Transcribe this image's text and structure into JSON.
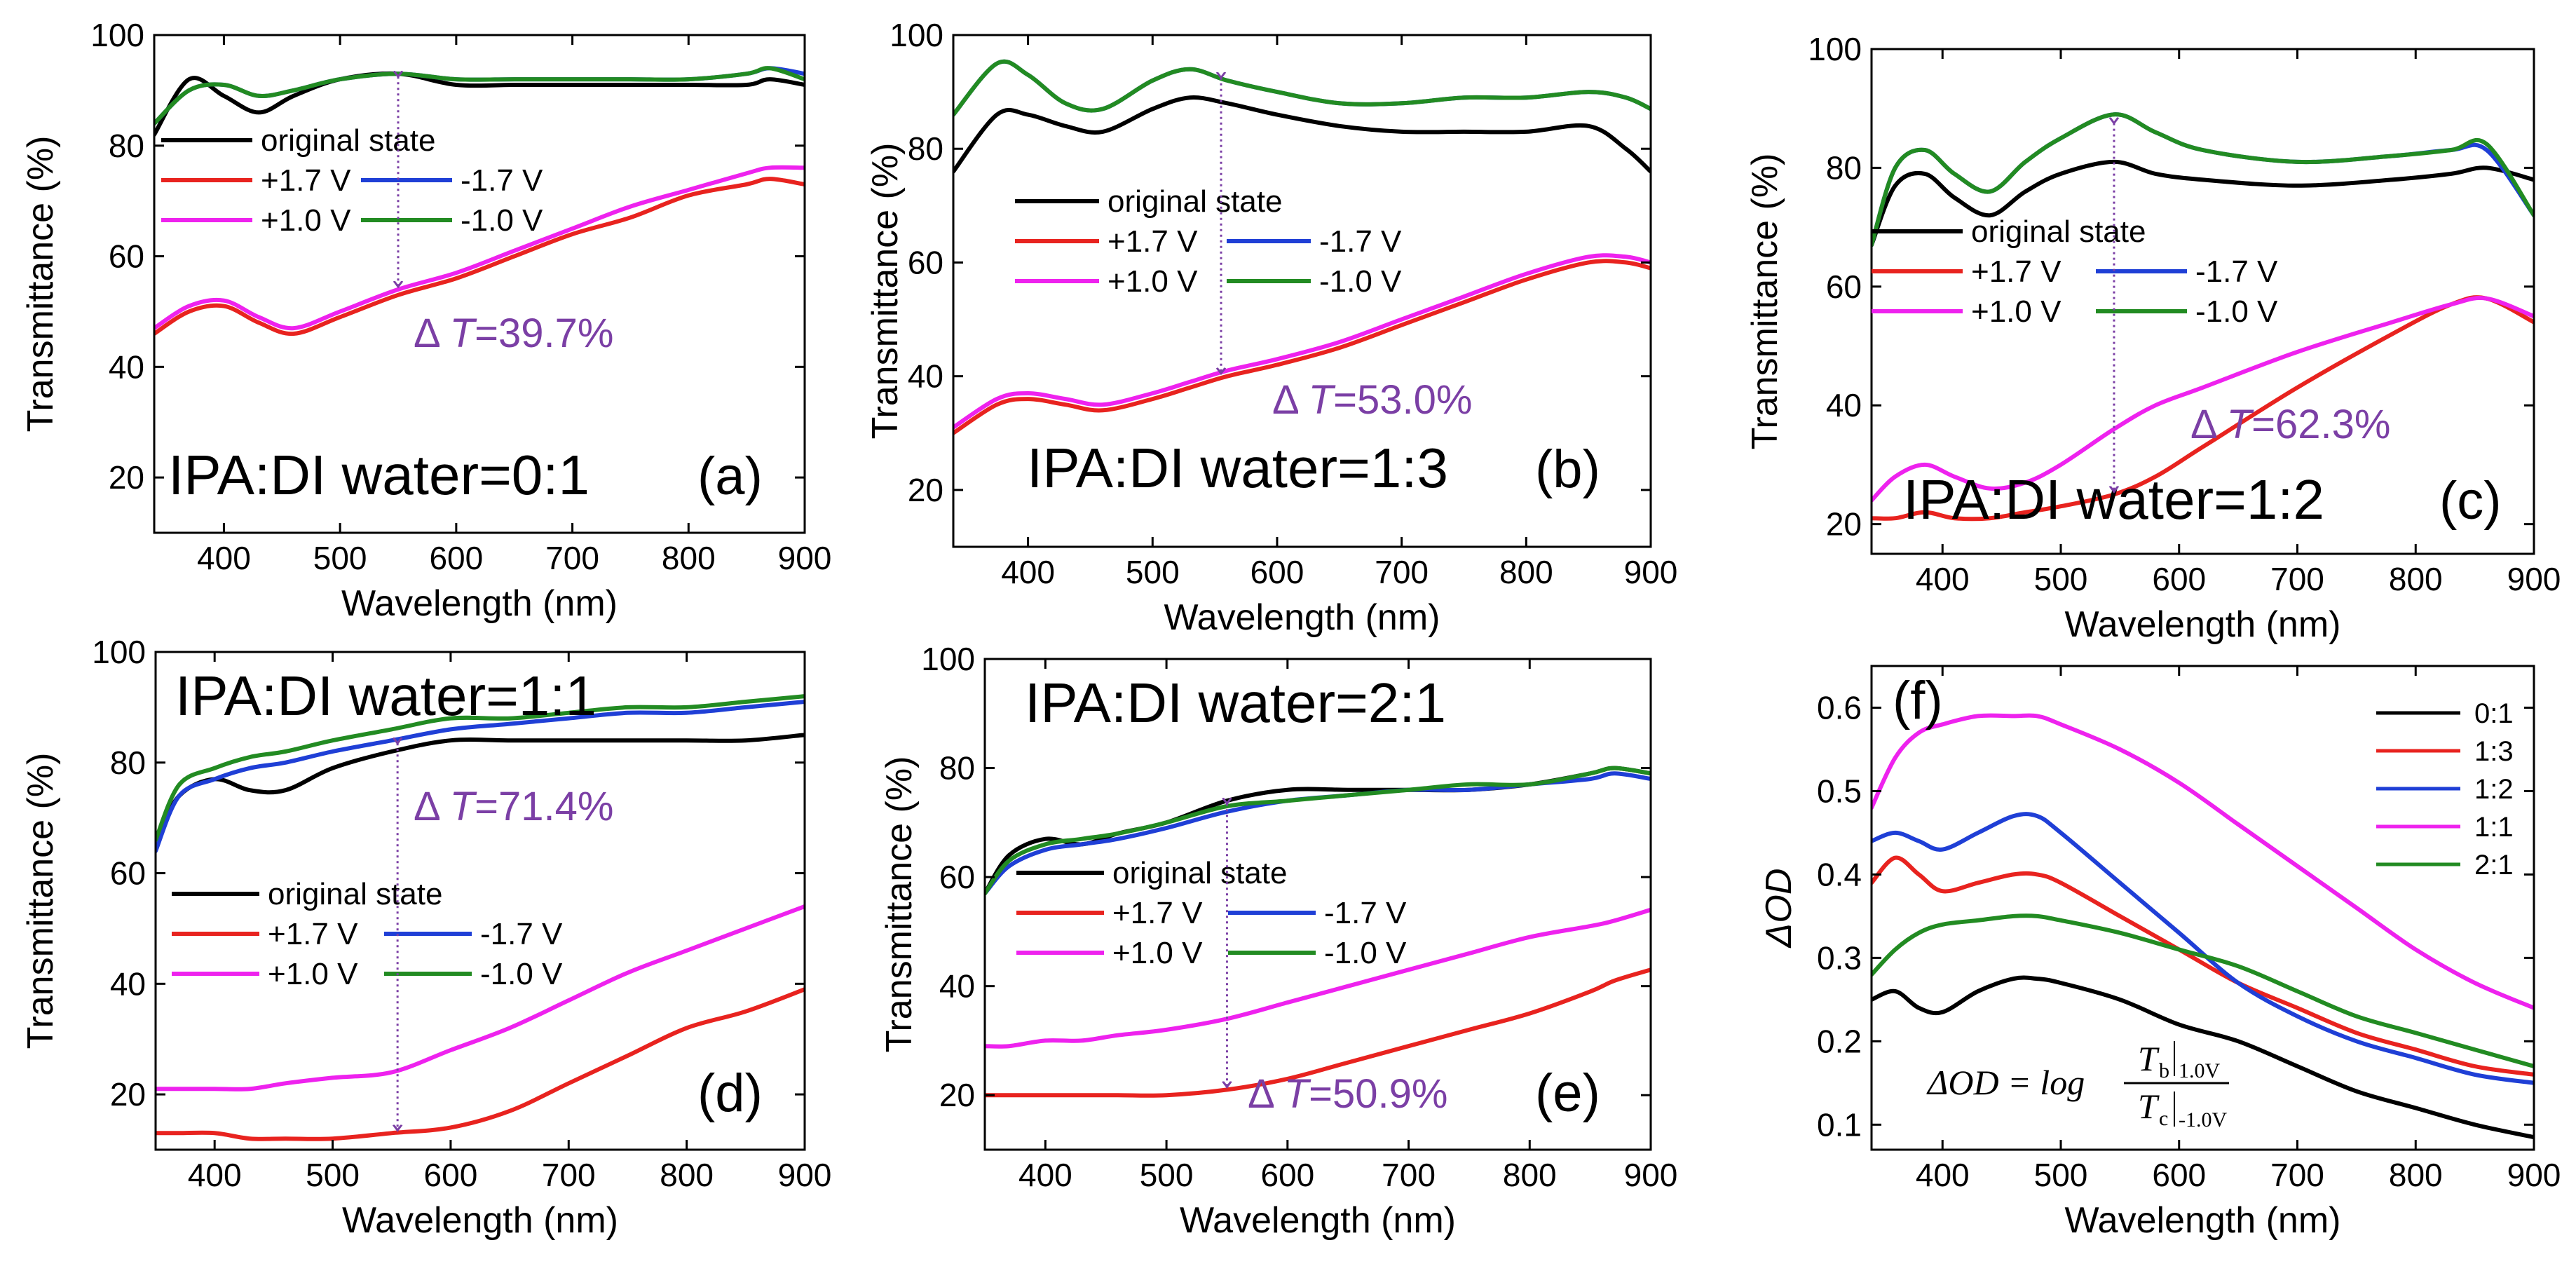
{
  "figure": {
    "colors": {
      "original": "#000000",
      "p17": "#e8231f",
      "m17": "#1f3fd6",
      "p10": "#ee22ee",
      "m10": "#228b22",
      "arrow": "#7b3fa5"
    },
    "legend_labels": {
      "original": "original state",
      "p17": "+1.7 V",
      "m17": "-1.7 V",
      "p10": "+1.0 V",
      "m10": "-1.0 V"
    }
  },
  "chart_data": [
    {
      "id": "a",
      "type": "line",
      "title": "IPA:DI water=0:1",
      "letter": "(a)",
      "xlabel": "Wavelength (nm)",
      "ylabel": "Transmittance (%)",
      "xlim": [
        340,
        900
      ],
      "ylim": [
        10,
        100
      ],
      "xticks": [
        400,
        500,
        600,
        700,
        800,
        900
      ],
      "yticks": [
        20,
        40,
        60,
        80,
        100
      ],
      "delta": "Δ T=39.7%",
      "delta_sym": "Δ ",
      "delta_T": "T",
      "delta_val": "=39.7%",
      "arrow": {
        "x": 550,
        "y_top": 93,
        "y_bottom": 54
      },
      "x": [
        340,
        370,
        400,
        430,
        460,
        500,
        550,
        600,
        650,
        700,
        750,
        800,
        850,
        870,
        900
      ],
      "series": [
        {
          "key": "original",
          "name": "original state",
          "values": [
            82,
            92,
            89,
            86,
            89,
            92,
            93,
            91,
            91,
            91,
            91,
            91,
            91,
            92,
            91
          ]
        },
        {
          "key": "m17",
          "name": "-1.7 V",
          "values": [
            84,
            90,
            91,
            89,
            90,
            92,
            93,
            92,
            92,
            92,
            92,
            92,
            93,
            94,
            93
          ]
        },
        {
          "key": "m10",
          "name": "-1.0 V",
          "values": [
            84,
            90,
            91,
            89,
            90,
            92,
            93,
            92,
            92,
            92,
            92,
            92,
            93,
            94,
            92
          ]
        },
        {
          "key": "p17",
          "name": "+1.7 V",
          "values": [
            46,
            50,
            51,
            48,
            46,
            49,
            53,
            56,
            60,
            64,
            67,
            71,
            73,
            74,
            73
          ]
        },
        {
          "key": "p10",
          "name": "+1.0 V",
          "values": [
            47,
            51,
            52,
            49,
            47,
            50,
            54,
            57,
            61,
            65,
            69,
            72,
            75,
            76,
            76
          ]
        }
      ]
    },
    {
      "id": "b",
      "type": "line",
      "title": "IPA:DI water=1:3",
      "letter": "(b)",
      "xlabel": "Wavelength (nm)",
      "ylabel": "Transmittance (%)",
      "xlim": [
        340,
        900
      ],
      "ylim": [
        10,
        100
      ],
      "xticks": [
        400,
        500,
        600,
        700,
        800,
        900
      ],
      "yticks": [
        20,
        40,
        60,
        80,
        100
      ],
      "delta": "Δ T=53.0%",
      "delta_sym": "Δ ",
      "delta_T": "T",
      "delta_val": "=53.0%",
      "arrow": {
        "x": 555,
        "y_top": 93,
        "y_bottom": 40
      },
      "x": [
        340,
        375,
        400,
        430,
        460,
        500,
        530,
        560,
        600,
        650,
        700,
        750,
        800,
        850,
        880,
        900
      ],
      "series": [
        {
          "key": "original",
          "name": "original state",
          "values": [
            76,
            86,
            86,
            84,
            83,
            87,
            89,
            88,
            86,
            84,
            83,
            83,
            83,
            84,
            80,
            76
          ]
        },
        {
          "key": "m17",
          "name": "-1.7 V",
          "values": [
            86,
            95,
            93,
            88,
            87,
            92,
            94,
            92,
            90,
            88,
            88,
            89,
            89,
            90,
            89,
            87
          ]
        },
        {
          "key": "m10",
          "name": "-1.0 V",
          "values": [
            86,
            95,
            93,
            88,
            87,
            92,
            94,
            92,
            90,
            88,
            88,
            89,
            89,
            90,
            89,
            87
          ]
        },
        {
          "key": "p17",
          "name": "+1.7 V",
          "values": [
            30,
            35,
            36,
            35,
            34,
            36,
            38,
            40,
            42,
            45,
            49,
            53,
            57,
            60,
            60,
            59
          ]
        },
        {
          "key": "p10",
          "name": "+1.0 V",
          "values": [
            31,
            36,
            37,
            36,
            35,
            37,
            39,
            41,
            43,
            46,
            50,
            54,
            58,
            61,
            61,
            60
          ]
        }
      ]
    },
    {
      "id": "c",
      "type": "line",
      "title": "IPA:DI water=1:2",
      "letter": "(c)",
      "xlabel": "Wavelength (nm)",
      "ylabel": "Transmittance (%)",
      "xlim": [
        340,
        900
      ],
      "ylim": [
        15,
        100
      ],
      "xticks": [
        400,
        500,
        600,
        700,
        800,
        900
      ],
      "yticks": [
        20,
        40,
        60,
        80,
        100
      ],
      "delta": "Δ T=62.3%",
      "delta_sym": "Δ ",
      "delta_T": "T",
      "delta_val": "=62.3%",
      "arrow": {
        "x": 545,
        "y_top": 88,
        "y_bottom": 25
      },
      "x": [
        340,
        360,
        385,
        410,
        440,
        470,
        500,
        545,
        580,
        620,
        700,
        780,
        830,
        860,
        900
      ],
      "series": [
        {
          "key": "original",
          "name": "original state",
          "values": [
            67,
            77,
            79,
            75,
            72,
            76,
            79,
            81,
            79,
            78,
            77,
            78,
            79,
            80,
            78
          ]
        },
        {
          "key": "m17",
          "name": "-1.7 V",
          "values": [
            67,
            80,
            83,
            79,
            76,
            81,
            85,
            89,
            86,
            83,
            81,
            82,
            83,
            83,
            72
          ]
        },
        {
          "key": "m10",
          "name": "-1.0 V",
          "values": [
            67,
            80,
            83,
            79,
            76,
            81,
            85,
            89,
            86,
            83,
            81,
            82,
            83,
            84,
            72
          ]
        },
        {
          "key": "p17",
          "name": "+1.7 V",
          "values": [
            21,
            21,
            22,
            21,
            21,
            22,
            23,
            25,
            28,
            33,
            43,
            52,
            57,
            58,
            54
          ]
        },
        {
          "key": "p10",
          "name": "+1.0 V",
          "values": [
            24,
            28,
            30,
            28,
            26,
            27,
            30,
            36,
            40,
            43,
            49,
            54,
            57,
            58,
            55
          ]
        }
      ]
    },
    {
      "id": "d",
      "type": "line",
      "title": "IPA:DI water=1:1",
      "letter": "(d)",
      "xlabel": "Wavelength (nm)",
      "ylabel": "Transmittance (%)",
      "xlim": [
        350,
        900
      ],
      "ylim": [
        10,
        100
      ],
      "xticks": [
        400,
        500,
        600,
        700,
        800,
        900
      ],
      "yticks": [
        20,
        40,
        60,
        80,
        100
      ],
      "delta": "Δ T=71.4%",
      "delta_sym": "Δ ",
      "delta_T": "T",
      "delta_val": "=71.4%",
      "arrow": {
        "x": 555,
        "y_top": 84,
        "y_bottom": 13
      },
      "x": [
        350,
        370,
        400,
        430,
        460,
        500,
        550,
        600,
        650,
        700,
        750,
        800,
        850,
        900
      ],
      "series": [
        {
          "key": "original",
          "name": "original state",
          "values": [
            66,
            74,
            77,
            75,
            75,
            79,
            82,
            84,
            84,
            84,
            84,
            84,
            84,
            85
          ]
        },
        {
          "key": "m17",
          "name": "-1.7 V",
          "values": [
            64,
            74,
            77,
            79,
            80,
            82,
            84,
            86,
            87,
            88,
            89,
            89,
            90,
            91
          ]
        },
        {
          "key": "m10",
          "name": "-1.0 V",
          "values": [
            66,
            76,
            79,
            81,
            82,
            84,
            86,
            88,
            88,
            89,
            90,
            90,
            91,
            92
          ]
        },
        {
          "key": "p17",
          "name": "+1.7 V",
          "values": [
            13,
            13,
            13,
            12,
            12,
            12,
            13,
            14,
            17,
            22,
            27,
            32,
            35,
            39
          ]
        },
        {
          "key": "p10",
          "name": "+1.0 V",
          "values": [
            21,
            21,
            21,
            21,
            22,
            23,
            24,
            28,
            32,
            37,
            42,
            46,
            50,
            54
          ]
        }
      ]
    },
    {
      "id": "e",
      "type": "line",
      "title": "IPA:DI water=2:1",
      "letter": "(e)",
      "xlabel": "Wavelength (nm)",
      "ylabel": "Transmittance (%)",
      "xlim": [
        350,
        900
      ],
      "ylim": [
        10,
        100
      ],
      "xticks": [
        400,
        500,
        600,
        700,
        800,
        900
      ],
      "yticks": [
        20,
        40,
        60,
        80,
        100
      ],
      "delta": "Δ T=50.9%",
      "delta_sym": "Δ ",
      "delta_T": "T",
      "delta_val": "=50.9%",
      "arrow": {
        "x": 550,
        "y_top": 74,
        "y_bottom": 21
      },
      "x": [
        350,
        370,
        400,
        430,
        460,
        500,
        550,
        600,
        650,
        700,
        750,
        800,
        850,
        870,
        900
      ],
      "series": [
        {
          "key": "original",
          "name": "original state",
          "values": [
            57,
            64,
            67,
            66,
            68,
            70,
            74,
            76,
            76,
            76,
            76,
            77,
            79,
            80,
            79
          ]
        },
        {
          "key": "m17",
          "name": "-1.7 V",
          "values": [
            57,
            62,
            65,
            66,
            67,
            69,
            72,
            74,
            75,
            76,
            76,
            77,
            78,
            79,
            78
          ]
        },
        {
          "key": "m10",
          "name": "-1.0 V",
          "values": [
            57,
            63,
            66,
            67,
            68,
            70,
            73,
            74,
            75,
            76,
            77,
            77,
            79,
            80,
            79
          ]
        },
        {
          "key": "p17",
          "name": "+1.7 V",
          "values": [
            20,
            20,
            20,
            20,
            20,
            20,
            21,
            23,
            26,
            29,
            32,
            35,
            39,
            41,
            43
          ]
        },
        {
          "key": "p10",
          "name": "+1.0 V",
          "values": [
            29,
            29,
            30,
            30,
            31,
            32,
            34,
            37,
            40,
            43,
            46,
            49,
            51,
            52,
            54
          ]
        }
      ]
    },
    {
      "id": "f",
      "type": "line",
      "letter": "(f)",
      "xlabel": "Wavelength (nm)",
      "ylabel": "ΔOD",
      "xlim": [
        340,
        900
      ],
      "ylim": [
        0.07,
        0.65
      ],
      "xticks": [
        400,
        500,
        600,
        700,
        800,
        900
      ],
      "yticks": [
        0.1,
        0.2,
        0.3,
        0.4,
        0.5,
        0.6
      ],
      "tick_labels": [
        "0.1",
        "0.2",
        "0.3",
        "0.4",
        "0.5",
        "0.6"
      ],
      "formula": {
        "lhs": "ΔOD = log",
        "num": "T",
        "num_sub": "b",
        "num_eval": "1.0V",
        "den": "T",
        "den_sub": "c",
        "den_eval": "-1.0V"
      },
      "x": [
        340,
        360,
        380,
        400,
        430,
        460,
        480,
        500,
        550,
        600,
        650,
        700,
        750,
        800,
        850,
        900
      ],
      "series": [
        {
          "name": "0:1",
          "color": "#000000",
          "values": [
            0.25,
            0.26,
            0.24,
            0.235,
            0.26,
            0.275,
            0.275,
            0.27,
            0.25,
            0.22,
            0.2,
            0.17,
            0.14,
            0.12,
            0.1,
            0.085
          ]
        },
        {
          "name": "1:3",
          "color": "#e8231f",
          "values": [
            0.39,
            0.42,
            0.4,
            0.38,
            0.39,
            0.4,
            0.4,
            0.39,
            0.35,
            0.31,
            0.27,
            0.24,
            0.21,
            0.19,
            0.17,
            0.16
          ]
        },
        {
          "name": "1:2",
          "color": "#1f3fd6",
          "values": [
            0.44,
            0.45,
            0.44,
            0.43,
            0.45,
            0.47,
            0.47,
            0.45,
            0.39,
            0.33,
            0.27,
            0.23,
            0.2,
            0.18,
            0.16,
            0.15
          ]
        },
        {
          "name": "1:1",
          "color": "#ee22ee",
          "values": [
            0.48,
            0.54,
            0.57,
            0.58,
            0.59,
            0.59,
            0.59,
            0.58,
            0.55,
            0.51,
            0.46,
            0.41,
            0.36,
            0.31,
            0.27,
            0.24
          ]
        },
        {
          "name": "2:1",
          "color": "#228b22",
          "values": [
            0.28,
            0.31,
            0.33,
            0.34,
            0.345,
            0.35,
            0.35,
            0.345,
            0.33,
            0.31,
            0.29,
            0.26,
            0.23,
            0.21,
            0.19,
            0.17
          ]
        }
      ]
    }
  ]
}
